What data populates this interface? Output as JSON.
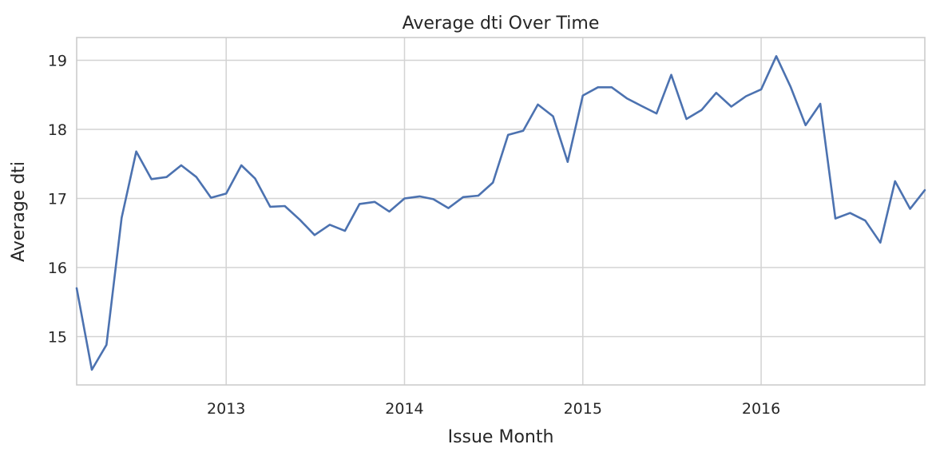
{
  "chart_data": {
    "type": "line",
    "title": "Average dti Over Time",
    "xlabel": "Issue Month",
    "ylabel": "Average dti",
    "xlim": [
      "2012-03-01",
      "2016-12-01"
    ],
    "ylim": [
      14.3,
      19.33
    ],
    "grid": true,
    "x_ticks": [
      {
        "value": "2013-01-01",
        "label": "2013"
      },
      {
        "value": "2014-01-01",
        "label": "2014"
      },
      {
        "value": "2015-01-01",
        "label": "2015"
      },
      {
        "value": "2016-01-01",
        "label": "2016"
      }
    ],
    "y_ticks": [
      {
        "value": 15,
        "label": "15"
      },
      {
        "value": 16,
        "label": "16"
      },
      {
        "value": 17,
        "label": "17"
      },
      {
        "value": 18,
        "label": "18"
      },
      {
        "value": 19,
        "label": "19"
      }
    ],
    "series": [
      {
        "color": "#4c72b0",
        "x": [
          "2012-03-01",
          "2012-04-01",
          "2012-05-01",
          "2012-06-01",
          "2012-07-01",
          "2012-08-01",
          "2012-09-01",
          "2012-10-01",
          "2012-11-01",
          "2012-12-01",
          "2013-01-01",
          "2013-02-01",
          "2013-03-01",
          "2013-04-01",
          "2013-05-01",
          "2013-06-01",
          "2013-07-01",
          "2013-08-01",
          "2013-09-01",
          "2013-10-01",
          "2013-11-01",
          "2013-12-01",
          "2014-01-01",
          "2014-02-01",
          "2014-03-01",
          "2014-04-01",
          "2014-05-01",
          "2014-06-01",
          "2014-07-01",
          "2014-08-01",
          "2014-09-01",
          "2014-10-01",
          "2014-11-01",
          "2014-12-01",
          "2015-01-01",
          "2015-02-01",
          "2015-03-01",
          "2015-04-01",
          "2015-05-01",
          "2015-06-01",
          "2015-07-01",
          "2015-08-01",
          "2015-09-01",
          "2015-10-01",
          "2015-11-01",
          "2015-12-01",
          "2016-01-01",
          "2016-02-01",
          "2016-03-01",
          "2016-04-01",
          "2016-05-01",
          "2016-06-01",
          "2016-07-01",
          "2016-08-01",
          "2016-09-01",
          "2016-10-01",
          "2016-11-01",
          "2016-12-01"
        ],
        "y": [
          15.7,
          14.52,
          14.88,
          16.72,
          17.68,
          17.28,
          17.31,
          17.48,
          17.31,
          17.01,
          17.07,
          17.48,
          17.29,
          16.88,
          16.89,
          16.69,
          16.47,
          16.62,
          16.53,
          16.92,
          16.95,
          16.81,
          17.0,
          17.03,
          16.99,
          16.86,
          17.02,
          17.04,
          17.23,
          17.92,
          17.98,
          18.36,
          18.19,
          17.53,
          18.49,
          18.61,
          18.61,
          18.45,
          18.34,
          18.23,
          18.79,
          18.15,
          18.28,
          18.53,
          18.33,
          18.48,
          18.58,
          19.06,
          18.62,
          18.06,
          18.37,
          16.71,
          16.79,
          16.68,
          16.36,
          17.25,
          16.85,
          17.12
        ]
      }
    ]
  }
}
